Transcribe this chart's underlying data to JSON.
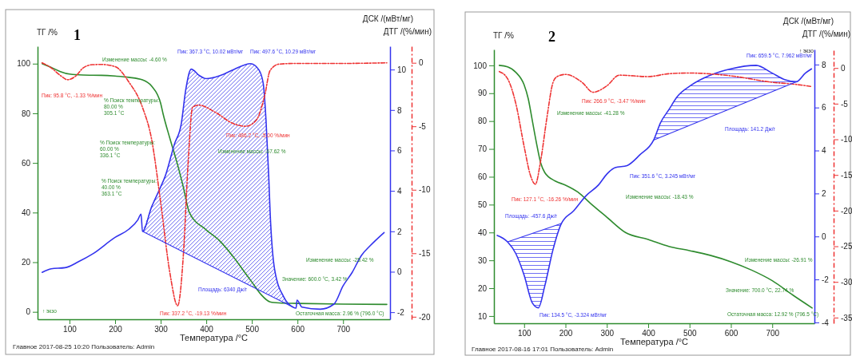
{
  "chart_data": [
    {
      "type": "line",
      "title": "1",
      "xlabel": "Температура /°C",
      "ylabel": "ТГ /%",
      "y2label": "ДСК /(мВт/мг)",
      "y3label": "ДТГ /(%/мин)",
      "xlim": [
        30,
        803
      ],
      "xticks": [
        100,
        200,
        300,
        400,
        500,
        600,
        700
      ],
      "ylim": [
        -3,
        107
      ],
      "yticks": [
        0,
        20,
        40,
        60,
        80,
        100
      ],
      "y2lim": [
        -2.35,
        11.15
      ],
      "y2ticks": [
        -2,
        0,
        2,
        4,
        6,
        8,
        10
      ],
      "y3lim": [
        -20.2,
        1.3
      ],
      "y3ticks": [
        -20,
        -15,
        -10,
        -5,
        0
      ],
      "series": [
        {
          "type": "line",
          "color": "#2e8b2e",
          "x": [
            40,
            60,
            80,
            100,
            130,
            170,
            200,
            230,
            260,
            280,
            300,
            305,
            320,
            336,
            350,
            363,
            400,
            430,
            460,
            480,
            500,
            520,
            540,
            560,
            600,
            700,
            796
          ],
          "values": [
            100,
            98.5,
            96.8,
            95.8,
            95.4,
            95.3,
            95,
            94.5,
            93.5,
            91,
            84,
            80,
            70,
            60,
            50,
            40,
            33,
            28.5,
            22,
            17,
            12,
            7,
            4,
            3.6,
            3.4,
            3.1,
            3
          ]
        },
        {
          "type": "line",
          "color": "#3333ee",
          "axis": "y2",
          "x": [
            40,
            60,
            90,
            120,
            150,
            200,
            230,
            250,
            257,
            260,
            280,
            300,
            310,
            330,
            345,
            355,
            367,
            385,
            400,
            430,
            460,
            497,
            515,
            525,
            531,
            537,
            540,
            550,
            570,
            590,
            597,
            599,
            610,
            650,
            680,
            700,
            720,
            740,
            760,
            790
          ],
          "values": [
            -0.03,
            0.15,
            0.2,
            0.5,
            0.87,
            1.7,
            2.1,
            2.57,
            2.85,
            2.0,
            3.2,
            4.2,
            4.73,
            6.3,
            7.3,
            9.0,
            10.02,
            9.7,
            9.55,
            9.7,
            10.0,
            10.29,
            10.0,
            9.3,
            7.5,
            4.7,
            2.96,
            0.1,
            -1.25,
            -1.75,
            -1.8,
            -1.4,
            -1.75,
            -1.85,
            -1.6,
            -0.7,
            -0.03,
            0.8,
            1.3,
            1.94
          ]
        },
        {
          "type": "line",
          "color": "#ee3333",
          "axis": "y3",
          "line_style": "dashed",
          "x": [
            40,
            60,
            80,
            95.8,
            115,
            130,
            150,
            170,
            200,
            230,
            260,
            280,
            300,
            320,
            337.2,
            350,
            360,
            370,
            383,
            420,
            460,
            486.2,
            510,
            528,
            540,
            560,
            600,
            700,
            796
          ],
          "values": [
            0,
            -0.4,
            -1.0,
            -1.33,
            -1.0,
            -0.4,
            -0.15,
            -0.13,
            -0.3,
            -1.5,
            -3.5,
            -6,
            -11,
            -16.5,
            -19.13,
            -15,
            -8,
            -3.5,
            -3.33,
            -3.9,
            -4.8,
            -5.0,
            -4.5,
            -2.6,
            -0.6,
            -0.1,
            -0.05,
            -0.05,
            0
          ]
        },
        {
          "type": "line",
          "color": "#3333ee",
          "axis": "y2",
          "x": [
            260,
            590
          ],
          "values": [
            2.0,
            -1.75
          ]
        }
      ],
      "annotations": [
        "Изменение массы: -4.60 %",
        "Пик: 95.8 °C, -1.33 %/мин",
        "Пик: 367.3 °C, 10.02 мВт/мг",
        "Пик: 497.6 °C, 10.29 мВт/мг",
        "% Поиск температуры:\n80.00 %\n305.1 °C",
        "% Поиск температуры:\n60.00 %\n336.1 °C",
        "Пик: 486.2 °C, -5.00 %/мин",
        "Изменение массы: -67.62 %",
        "% Поиск температуры:\n40.00 %\n363.1 °C",
        "Площадь: 6340 Дж/г",
        "Пик: 337.2 °C, -19.13 %/мин",
        "Значение: 600.0 °C, 3.42 %",
        "Изменение массы: -25.42 %",
        "Остаточная масса: 2.96 % (796.0 °C)",
        "↑ экзо",
        "Главное   2017-08-25 10:20   Пользователь: Admin"
      ]
    },
    {
      "type": "line",
      "title": "2",
      "xlabel": "Температура /°C",
      "ylabel": "ТГ /%",
      "y2label": "ДСК /(мВт/мг)",
      "y3label": "ДТГ /(%/мин)",
      "xlim": [
        27,
        802
      ],
      "xticks": [
        100,
        200,
        300,
        400,
        500,
        600,
        700
      ],
      "ylim": [
        7.4,
        105.7
      ],
      "yticks": [
        10,
        20,
        30,
        40,
        50,
        60,
        70,
        80,
        90,
        100
      ],
      "y2lim": [
        -4.04,
        8.7
      ],
      "y2ticks": [
        -4,
        -2,
        0,
        2,
        4,
        6,
        8
      ],
      "y3lim": [
        -35.8,
        2.6
      ],
      "y3ticks": [
        -35,
        -30,
        -25,
        -20,
        -15,
        -10,
        -5,
        0
      ],
      "series": [
        {
          "type": "line",
          "color": "#2e8b2e",
          "x": [
            40,
            60,
            80,
            100,
            110,
            120,
            130,
            140,
            150,
            175,
            200,
            230,
            260,
            300,
            345,
            400,
            450,
            500,
            550,
            600,
            650,
            700,
            750,
            796.5
          ],
          "values": [
            100,
            99.5,
            97.5,
            93,
            88,
            80,
            72,
            65,
            61.5,
            58.5,
            57,
            54.5,
            50.5,
            45.5,
            40,
            37.5,
            35,
            33.5,
            31.8,
            29.5,
            26.5,
            22.7,
            17.5,
            12.9
          ]
        },
        {
          "type": "line",
          "color": "#3333ee",
          "axis": "y2",
          "x": [
            35,
            60,
            80,
            100,
            120,
            134.5,
            150,
            170,
            190,
            220,
            250,
            280,
            300,
            320,
            349,
            380,
            413,
            430,
            450,
            470,
            504,
            550,
            600,
            661,
            700,
            730,
            758,
            780,
            795
          ],
          "values": [
            0.05,
            -0.25,
            -0.8,
            -1.8,
            -3.1,
            -3.32,
            -2.3,
            -0.6,
            0.6,
            1.2,
            1.9,
            2.4,
            2.9,
            3.2,
            3.3,
            3.8,
            4.48,
            5.3,
            5.9,
            6.5,
            7.04,
            7.5,
            7.8,
            7.96,
            7.6,
            7.3,
            7.2,
            7.6,
            7.8
          ]
        },
        {
          "type": "line",
          "color": "#ee3333",
          "axis": "y3",
          "line_style": "dashed",
          "x": [
            40,
            60,
            80,
            100,
            115,
            127.1,
            140,
            155,
            170,
            180,
            200,
            240,
            266.9,
            300,
            330,
            400,
            450,
            500,
            600,
            700,
            758,
            795
          ],
          "values": [
            -0.5,
            -1.5,
            -5,
            -11,
            -15,
            -16.3,
            -13,
            -7,
            -2,
            -1.2,
            -0.9,
            -2,
            -3.4,
            -2.5,
            -1.0,
            -1.2,
            -0.8,
            -0.7,
            -1.1,
            -2,
            -2.3,
            -2.6
          ]
        },
        {
          "type": "line",
          "color": "#3333ee",
          "axis": "y2",
          "x": [
            60,
            190
          ],
          "values": [
            -0.25,
            0.6
          ]
        },
        {
          "type": "line",
          "color": "#3333ee",
          "axis": "y2",
          "x": [
            413,
            758
          ],
          "values": [
            4.48,
            7.2
          ]
        }
      ],
      "annotations": [
        "Пик: 659.5 °C, 7.962 мВт/мг",
        "Пик: 266.9 °C, -3.47 %/мин",
        "Изменение массы: -41.28 %",
        "Площадь: 141.2 Дж/г",
        "Пик: 351.6 °C, 3.245 мВт/мг",
        "Пик: 127.1 °C, -16.26 %/мин",
        "Площадь: -457.6 Дж/г",
        "Изменение массы: -18.43 %",
        "Изменение массы: -26.91 %",
        "Значение: 700.0 °C, 22.74 %",
        "Пик: 134.5 °C, -3.324 мВт/мг",
        "Остаточная масса: 12.92 % (796.5 °C)",
        "↑ экзо",
        "Главное   2017-08-16 17:01   Пользователь: Admin"
      ]
    }
  ]
}
